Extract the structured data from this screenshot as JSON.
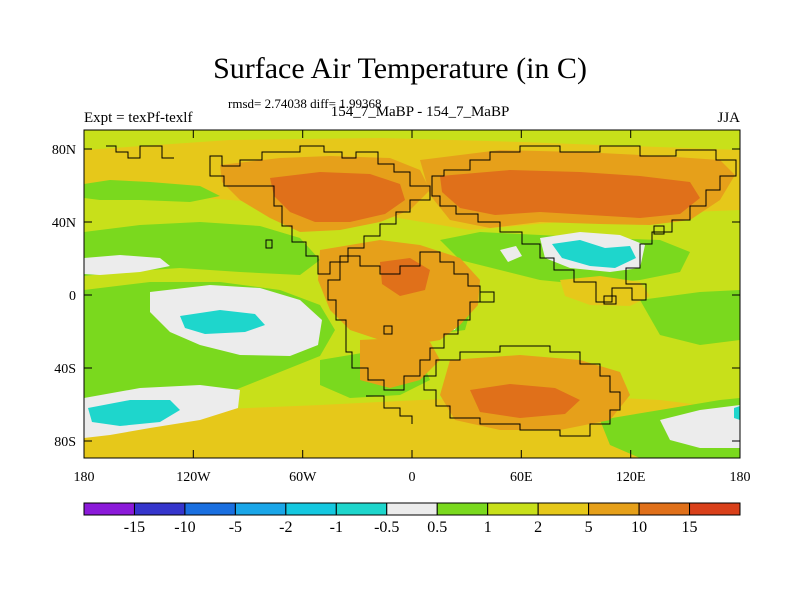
{
  "title": "Surface Air Temperature (in C)",
  "stats": "rmsd= 2.74038 diff= 1.99368",
  "left_label": "Expt = texPf-texlf",
  "center_label": "154_7_MaBP - 154_7_MaBP",
  "season": "JJA",
  "x_ticks": [
    "180",
    "120W",
    "60W",
    "0",
    "60E",
    "120E",
    "180"
  ],
  "y_ticks": [
    "80N",
    "40N",
    "0",
    "40S",
    "80S"
  ],
  "colorbar": {
    "colors": [
      "#8b1ad9",
      "#3535cc",
      "#1a6fe0",
      "#1aa6e8",
      "#14c8e0",
      "#1ed6cc",
      "#ececec",
      "#7ad91e",
      "#c8e01a",
      "#e6c81a",
      "#e6a01a",
      "#e0701a",
      "#d9401a"
    ],
    "labels": [
      "-15",
      "-10",
      "-5",
      "-2",
      "-1",
      "-0.5",
      "0.5",
      "1",
      "2",
      "5",
      "10",
      "15"
    ]
  },
  "legend_colors": {
    "cyan": "#1ed6cc",
    "white": "#ececec",
    "green": "#7ad91e",
    "yellowgreen": "#c8e01a",
    "yellow": "#e6c81a",
    "orange": "#e6a01a",
    "darkorange": "#e0701a"
  }
}
